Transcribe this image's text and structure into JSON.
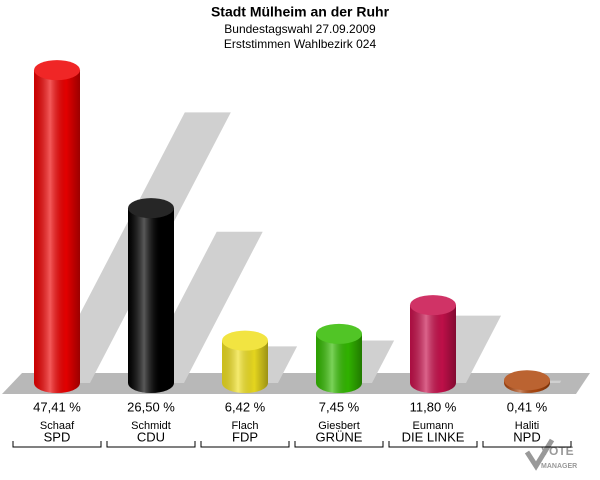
{
  "chart_data": {
    "type": "bar3d",
    "title": "Stadt Mülheim an der Ruhr",
    "subtitle": [
      "Bundestagswahl 27.09.2009",
      "Erststimmen Wahlbezirk 024"
    ],
    "candidates": [
      "Schaaf",
      "Schmidt",
      "Flach",
      "Giesbert",
      "Eumann",
      "Haliti"
    ],
    "categories": [
      "SPD",
      "CDU",
      "FDP",
      "GRÜNE",
      "DIE LINKE",
      "NPD"
    ],
    "values": [
      47.41,
      26.5,
      6.42,
      7.45,
      11.8,
      0.41
    ],
    "value_labels": [
      "47,41 %",
      "26,50 %",
      "6,42 %",
      "7,45 %",
      "11,80 %",
      "0,41 %"
    ],
    "colors": [
      "#ee0000",
      "#000000",
      "#f0e020",
      "#33bb00",
      "#c8104c",
      "#b0480e"
    ],
    "logo": [
      "VOTE",
      "MANAGER"
    ]
  }
}
